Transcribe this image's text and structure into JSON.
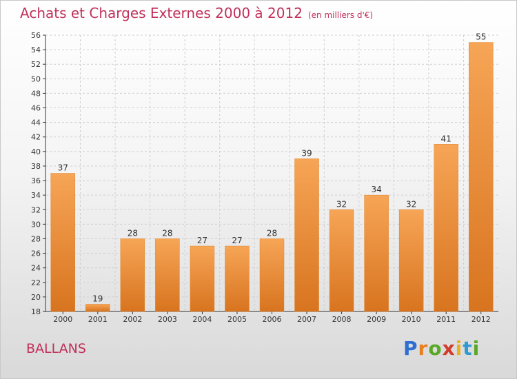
{
  "title": "Achats et Charges Externes 2000 à 2012",
  "subtitle": "(en milliers d'€)",
  "commune": "BALLANS",
  "logo": {
    "letters": [
      "P",
      "r",
      "o",
      "x",
      "i",
      "t",
      "i"
    ],
    "colors": [
      "#2f6fd1",
      "#e8801f",
      "#5aa827",
      "#d23a2a",
      "#e8b21f",
      "#2f9ad1",
      "#5aa827"
    ]
  },
  "colors": {
    "bar": "#f2913a",
    "bar_dark": "#d8741f",
    "title": "#c0305a",
    "axis": "#333333",
    "grid": "#cfcfcf"
  },
  "chart_data": {
    "type": "bar",
    "title": "Achats et Charges Externes 2000 à 2012",
    "subtitle": "(en milliers d'€)",
    "categories": [
      "2000",
      "2001",
      "2002",
      "2003",
      "2004",
      "2005",
      "2006",
      "2007",
      "2008",
      "2009",
      "2010",
      "2011",
      "2012"
    ],
    "values": [
      37,
      19,
      28,
      28,
      27,
      27,
      28,
      39,
      32,
      34,
      32,
      41,
      55
    ],
    "ylim": [
      18,
      56
    ],
    "yticks": [
      18,
      20,
      22,
      24,
      26,
      28,
      30,
      32,
      34,
      36,
      38,
      40,
      42,
      44,
      46,
      48,
      50,
      52,
      54,
      56
    ],
    "grid": "horizontal dashed",
    "xlabel": "",
    "ylabel": ""
  }
}
